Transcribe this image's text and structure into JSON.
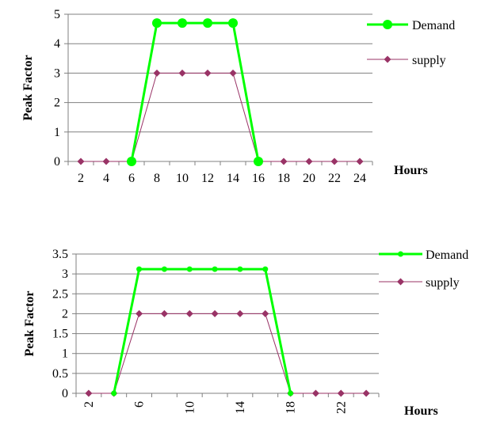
{
  "chart_data": [
    {
      "type": "line",
      "title": "",
      "xlabel": "Hours",
      "ylabel": "Peak Factor",
      "x": [
        2,
        4,
        6,
        8,
        10,
        12,
        14,
        16,
        18,
        20,
        22,
        24
      ],
      "xticks": [
        "2",
        "4",
        "6",
        "8",
        "10",
        "12",
        "14",
        "16",
        "18",
        "20",
        "22",
        "24"
      ],
      "yticks": [
        "0",
        "1",
        "2",
        "3",
        "4",
        "5"
      ],
      "ylim": [
        0,
        5
      ],
      "grid": true,
      "legend_position": "right",
      "series": [
        {
          "name": "Demand",
          "color": "#00ff00",
          "marker": "circle",
          "x": [
            6,
            8,
            10,
            12,
            14,
            16
          ],
          "values": [
            0,
            4.7,
            4.7,
            4.7,
            4.7,
            0
          ]
        },
        {
          "name": "supply",
          "color": "#993366",
          "marker": "diamond",
          "x": [
            2,
            4,
            6,
            8,
            10,
            12,
            14,
            16,
            18,
            20,
            22,
            24
          ],
          "values": [
            0,
            0,
            0,
            3,
            3,
            3,
            3,
            0,
            0,
            0,
            0,
            0
          ]
        }
      ]
    },
    {
      "type": "line",
      "title": "",
      "xlabel": "Hours",
      "ylabel": "Peak Factor",
      "x": [
        2,
        4,
        6,
        8,
        10,
        12,
        14,
        16,
        18,
        20,
        22,
        24
      ],
      "xticks": [
        "2",
        "6",
        "10",
        "14",
        "18",
        "22"
      ],
      "xtick_rotation": "vertical",
      "yticks": [
        "0",
        "0.5",
        "1",
        "1.5",
        "2",
        "2.5",
        "3",
        "3.5"
      ],
      "ylim": [
        0,
        3.5
      ],
      "grid": true,
      "legend_position": "right",
      "series": [
        {
          "name": "Demand",
          "color": "#00ff00",
          "marker": "circle",
          "x": [
            4,
            6,
            8,
            10,
            12,
            14,
            16,
            18
          ],
          "values": [
            0,
            3.12,
            3.12,
            3.12,
            3.12,
            3.12,
            3.12,
            0
          ]
        },
        {
          "name": "supply",
          "color": "#993366",
          "marker": "diamond",
          "x": [
            2,
            4,
            6,
            8,
            10,
            12,
            14,
            16,
            18,
            20,
            22,
            24
          ],
          "values": [
            0,
            0,
            2,
            2,
            2,
            2,
            2,
            2,
            0,
            0,
            0,
            0
          ]
        }
      ]
    }
  ]
}
